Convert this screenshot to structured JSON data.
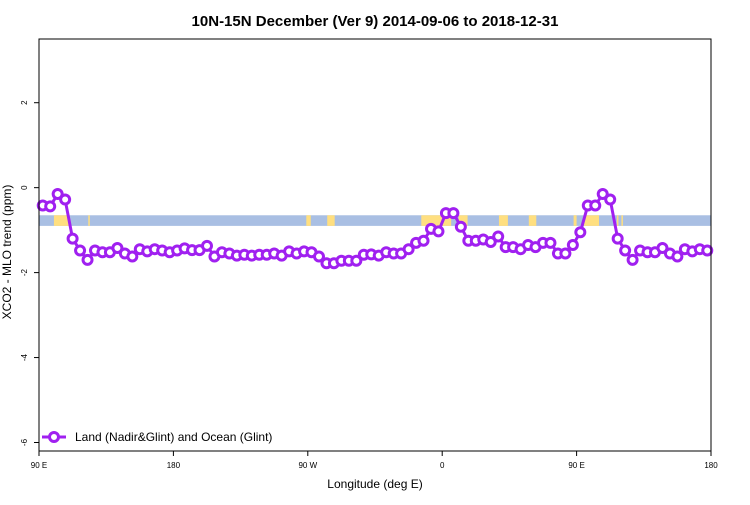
{
  "colors": {
    "series": "#a020f0",
    "ocean_band": "#a9bfe3",
    "land_band": "#ffdf80",
    "axis": "#000000",
    "background": "#ffffff"
  },
  "chart_data": {
    "type": "line",
    "title": "10N-15N December (Ver 9)   2014-09-06 to 2018-12-31",
    "xlabel": "Longitude (deg E)",
    "ylabel": "XCO2 - MLO trend (ppm)",
    "xlim": [
      90,
      540
    ],
    "ylim": [
      -6.2,
      3.5
    ],
    "x_ticks": [
      90,
      180,
      270,
      360,
      450,
      540
    ],
    "x_tick_labels": [
      "90 E",
      "180",
      "90 W",
      "0",
      "90 E",
      "180"
    ],
    "y_ticks": [
      -6,
      -4,
      -2,
      0,
      2
    ],
    "y_tick_labels": [
      "-6",
      "-4",
      "-2",
      "0",
      "2"
    ],
    "grid": false,
    "legend_position": "bottom-left",
    "band": {
      "y_min": -0.9,
      "y_max": -0.65
    },
    "land_segments": [
      [
        100,
        110
      ],
      [
        123,
        124
      ],
      [
        269,
        272
      ],
      [
        283,
        288
      ],
      [
        346,
        366
      ],
      [
        371,
        377
      ],
      [
        398,
        404
      ],
      [
        418,
        423
      ],
      [
        448,
        450
      ],
      [
        455,
        465
      ],
      [
        477,
        478
      ],
      [
        480,
        481
      ]
    ],
    "series": [
      {
        "name": "Land (Nadir&Glint) and Ocean (Glint)",
        "x": [
          92.5,
          97.5,
          102.5,
          107.5,
          112.5,
          117.5,
          122.5,
          127.5,
          132.5,
          137.5,
          142.5,
          147.5,
          152.5,
          157.5,
          162.5,
          167.5,
          172.5,
          177.5,
          182.5,
          187.5,
          192.5,
          197.5,
          202.5,
          207.5,
          212.5,
          217.5,
          222.5,
          227.5,
          232.5,
          237.5,
          242.5,
          247.5,
          252.5,
          257.5,
          262.5,
          267.5,
          272.5,
          277.5,
          282.5,
          287.5,
          292.5,
          297.5,
          302.5,
          307.5,
          312.5,
          317.5,
          322.5,
          327.5,
          332.5,
          337.5,
          342.5,
          347.5,
          352.5,
          357.5,
          362.5,
          367.5,
          372.5,
          377.5,
          382.5,
          387.5,
          392.5,
          397.5,
          402.5,
          407.5,
          412.5,
          417.5,
          422.5,
          427.5,
          432.5,
          437.5,
          442.5,
          447.5,
          452.5,
          457.5,
          462.5,
          467.5,
          472.5,
          477.5,
          482.5,
          487.5,
          492.5,
          497.5,
          502.5,
          507.5,
          512.5,
          517.5,
          522.5,
          527.5,
          532.5,
          537.5
        ],
        "y": [
          -0.42,
          -0.44,
          -0.15,
          -0.28,
          -1.2,
          -1.48,
          -1.7,
          -1.48,
          -1.52,
          -1.52,
          -1.42,
          -1.55,
          -1.62,
          -1.45,
          -1.5,
          -1.45,
          -1.48,
          -1.52,
          -1.48,
          -1.43,
          -1.47,
          -1.47,
          -1.37,
          -1.62,
          -1.52,
          -1.55,
          -1.6,
          -1.58,
          -1.6,
          -1.58,
          -1.58,
          -1.55,
          -1.6,
          -1.5,
          -1.55,
          -1.5,
          -1.52,
          -1.62,
          -1.78,
          -1.78,
          -1.72,
          -1.72,
          -1.72,
          -1.58,
          -1.57,
          -1.6,
          -1.52,
          -1.55,
          -1.55,
          -1.45,
          -1.3,
          -1.25,
          -0.97,
          -1.03,
          -0.6,
          -0.6,
          -0.92,
          -1.25,
          -1.25,
          -1.22,
          -1.28,
          -1.15,
          -1.4,
          -1.4,
          -1.45,
          -1.35,
          -1.4,
          -1.3,
          -1.3,
          -1.55,
          -1.55,
          -1.35,
          -1.05,
          -0.42,
          -0.42,
          -0.15,
          -0.28,
          -1.2,
          -1.48,
          -1.7,
          -1.48,
          -1.52,
          -1.52,
          -1.42,
          -1.55,
          -1.62,
          -1.45,
          -1.5,
          -1.45,
          -1.48
        ]
      }
    ]
  }
}
